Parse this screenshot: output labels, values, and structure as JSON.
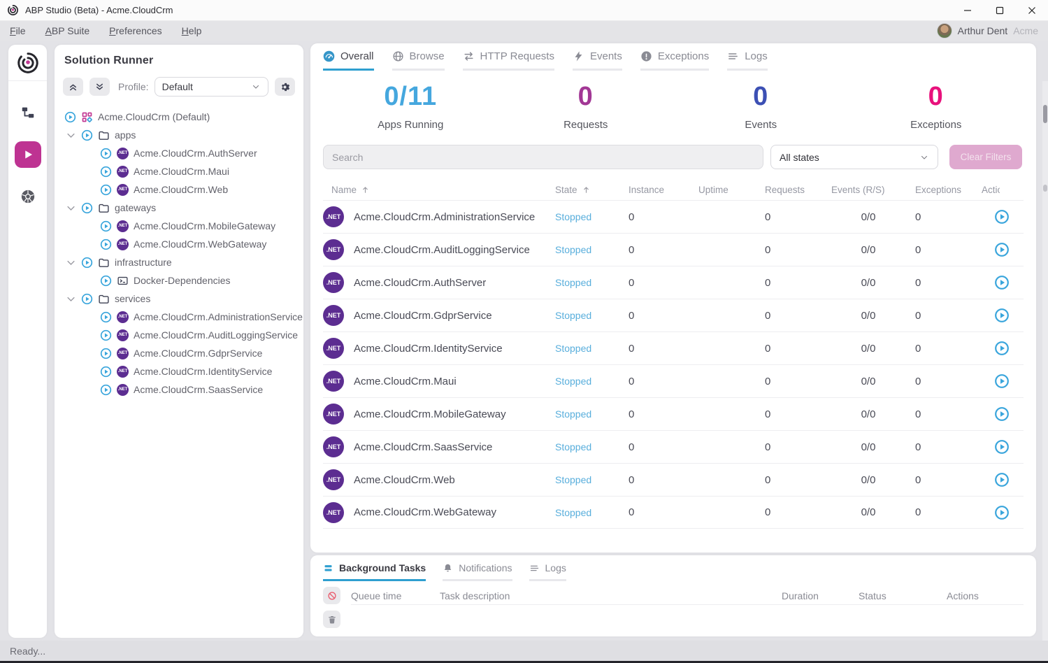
{
  "window": {
    "title": "ABP Studio (Beta) - Acme.CloudCrm"
  },
  "menu": {
    "items": [
      "File",
      "ABP Suite",
      "Preferences",
      "Help"
    ],
    "user": {
      "name": "Arthur Dent",
      "org": "Acme"
    }
  },
  "rail": {
    "logo_icon": "abp-logo",
    "items": [
      {
        "name": "solution-explorer",
        "icon": "tree-explorer",
        "active": false
      },
      {
        "name": "solution-runner",
        "icon": "run-play",
        "active": true
      },
      {
        "name": "kubernetes",
        "icon": "kubernetes",
        "active": false
      }
    ]
  },
  "solution_runner": {
    "title": "Solution Runner",
    "profile_label": "Profile:",
    "profile_value": "Default",
    "toolbar_icons": [
      "collapse-all",
      "expand-all",
      "gear"
    ],
    "tree": [
      {
        "type": "root",
        "icon": "solution-grid",
        "label": "Acme.CloudCrm (Default)"
      },
      {
        "type": "group",
        "icon": "folder",
        "label": "apps"
      },
      {
        "type": "item",
        "icon": "net",
        "label": "Acme.CloudCrm.AuthServer"
      },
      {
        "type": "item",
        "icon": "net",
        "label": "Acme.CloudCrm.Maui"
      },
      {
        "type": "item",
        "icon": "net",
        "label": "Acme.CloudCrm.Web"
      },
      {
        "type": "group",
        "icon": "folder",
        "label": "gateways"
      },
      {
        "type": "item",
        "icon": "net",
        "label": "Acme.CloudCrm.MobileGateway"
      },
      {
        "type": "item",
        "icon": "net",
        "label": "Acme.CloudCrm.WebGateway"
      },
      {
        "type": "group",
        "icon": "folder",
        "label": "infrastructure"
      },
      {
        "type": "item",
        "icon": "terminal",
        "label": "Docker-Dependencies"
      },
      {
        "type": "group",
        "icon": "folder",
        "label": "services"
      },
      {
        "type": "item",
        "icon": "net",
        "label": "Acme.CloudCrm.AdministrationService"
      },
      {
        "type": "item",
        "icon": "net",
        "label": "Acme.CloudCrm.AuditLoggingService"
      },
      {
        "type": "item",
        "icon": "net",
        "label": "Acme.CloudCrm.GdprService"
      },
      {
        "type": "item",
        "icon": "net",
        "label": "Acme.CloudCrm.IdentityService"
      },
      {
        "type": "item",
        "icon": "net",
        "label": "Acme.CloudCrm.SaasService"
      }
    ]
  },
  "main": {
    "tabs": [
      {
        "label": "Overall",
        "icon": "gauge",
        "active": true
      },
      {
        "label": "Browse",
        "icon": "globe",
        "active": false
      },
      {
        "label": "HTTP Requests",
        "icon": "swap-arrows",
        "active": false
      },
      {
        "label": "Events",
        "icon": "bolt",
        "active": false
      },
      {
        "label": "Exceptions",
        "icon": "exclamation-circle",
        "active": false
      },
      {
        "label": "Logs",
        "icon": "list-lines",
        "active": false
      }
    ],
    "stats": [
      {
        "value": "0/11",
        "label": "Apps Running",
        "color": "#45a7de"
      },
      {
        "value": "0",
        "label": "Requests",
        "color": "#a23795"
      },
      {
        "value": "0",
        "label": "Events",
        "color": "#3c50b4"
      },
      {
        "value": "0",
        "label": "Exceptions",
        "color": "#e8117c"
      }
    ],
    "search_placeholder": "Search",
    "state_filter_value": "All states",
    "clear_filters_label": "Clear Filters",
    "table": {
      "net_badge_text": ".NET",
      "columns": [
        {
          "key": "name",
          "label": "Name",
          "sort": "asc"
        },
        {
          "key": "state",
          "label": "State",
          "sort": "asc"
        },
        {
          "key": "instance",
          "label": "Instance"
        },
        {
          "key": "uptime",
          "label": "Uptime"
        },
        {
          "key": "requests",
          "label": "Requests"
        },
        {
          "key": "events",
          "label": "Events (R/S)"
        },
        {
          "key": "exceptions",
          "label": "Exceptions"
        },
        {
          "key": "act",
          "label": "Actions"
        }
      ],
      "rows": [
        {
          "name": "Acme.CloudCrm.AdministrationService",
          "state": "Stopped",
          "instance": "0",
          "uptime": "",
          "requests": "0",
          "events": "0/0",
          "exceptions": "0"
        },
        {
          "name": "Acme.CloudCrm.AuditLoggingService",
          "state": "Stopped",
          "instance": "0",
          "uptime": "",
          "requests": "0",
          "events": "0/0",
          "exceptions": "0"
        },
        {
          "name": "Acme.CloudCrm.AuthServer",
          "state": "Stopped",
          "instance": "0",
          "uptime": "",
          "requests": "0",
          "events": "0/0",
          "exceptions": "0"
        },
        {
          "name": "Acme.CloudCrm.GdprService",
          "state": "Stopped",
          "instance": "0",
          "uptime": "",
          "requests": "0",
          "events": "0/0",
          "exceptions": "0"
        },
        {
          "name": "Acme.CloudCrm.IdentityService",
          "state": "Stopped",
          "instance": "0",
          "uptime": "",
          "requests": "0",
          "events": "0/0",
          "exceptions": "0"
        },
        {
          "name": "Acme.CloudCrm.Maui",
          "state": "Stopped",
          "instance": "0",
          "uptime": "",
          "requests": "0",
          "events": "0/0",
          "exceptions": "0"
        },
        {
          "name": "Acme.CloudCrm.MobileGateway",
          "state": "Stopped",
          "instance": "0",
          "uptime": "",
          "requests": "0",
          "events": "0/0",
          "exceptions": "0"
        },
        {
          "name": "Acme.CloudCrm.SaasService",
          "state": "Stopped",
          "instance": "0",
          "uptime": "",
          "requests": "0",
          "events": "0/0",
          "exceptions": "0"
        },
        {
          "name": "Acme.CloudCrm.Web",
          "state": "Stopped",
          "instance": "0",
          "uptime": "",
          "requests": "0",
          "events": "0/0",
          "exceptions": "0"
        },
        {
          "name": "Acme.CloudCrm.WebGateway",
          "state": "Stopped",
          "instance": "0",
          "uptime": "",
          "requests": "0",
          "events": "0/0",
          "exceptions": "0"
        }
      ]
    }
  },
  "bottom_panel": {
    "tabs": [
      {
        "label": "Background Tasks",
        "icon": "tasks",
        "active": true
      },
      {
        "label": "Notifications",
        "icon": "bell",
        "active": false
      },
      {
        "label": "Logs",
        "icon": "list-lines",
        "active": false
      }
    ],
    "buttons": [
      {
        "name": "cancel-tasks",
        "icon": "block"
      },
      {
        "name": "clear-tasks",
        "icon": "trash"
      }
    ],
    "columns": [
      "Queue time",
      "Task description",
      "Duration",
      "Status",
      "Actions"
    ]
  },
  "statusbar": {
    "text": "Ready..."
  },
  "colors": {
    "accent_blue": "#2f9fd0",
    "brand_magenta": "#be3392",
    "stopped_state": "#58aedc",
    "net_badge": "#5c2d91"
  }
}
